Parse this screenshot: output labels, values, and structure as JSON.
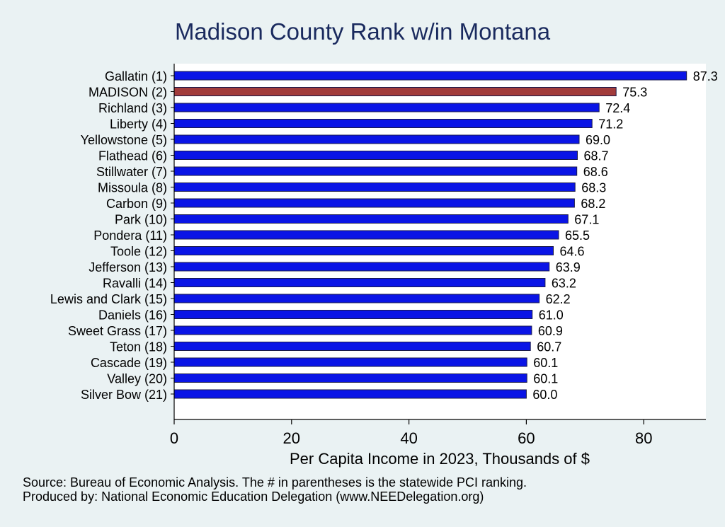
{
  "chart_data": {
    "type": "bar",
    "orientation": "horizontal",
    "title": "Madison County Rank w/in Montana",
    "xlabel": "Per Capita Income in 2023, Thousands of $",
    "ylabel": "",
    "xlim": [
      0,
      90
    ],
    "xticks": [
      0,
      20,
      40,
      60,
      80
    ],
    "grid": false,
    "categories": [
      "Gallatin  (1)",
      "MADISON  (2)",
      "Richland  (3)",
      "Liberty  (4)",
      "Yellowstone  (5)",
      "Flathead  (6)",
      "Stillwater  (7)",
      "Missoula  (8)",
      "Carbon  (9)",
      "Park (10)",
      "Pondera (11)",
      "Toole (12)",
      "Jefferson (13)",
      "Ravalli (14)",
      "Lewis and Clark (15)",
      "Daniels (16)",
      "Sweet Grass (17)",
      "Teton (18)",
      "Cascade (19)",
      "Valley (20)",
      "Silver Bow (21)"
    ],
    "values": [
      87.3,
      75.3,
      72.4,
      71.2,
      69.0,
      68.7,
      68.6,
      68.3,
      68.2,
      67.1,
      65.5,
      64.6,
      63.9,
      63.2,
      62.2,
      61.0,
      60.9,
      60.7,
      60.1,
      60.1,
      60.0
    ],
    "value_labels": [
      "87.3",
      "75.3",
      "72.4",
      "71.2",
      "69.0",
      "68.7",
      "68.6",
      "68.3",
      "68.2",
      "67.1",
      "65.5",
      "64.6",
      "63.9",
      "63.2",
      "62.2",
      "61.0",
      "60.9",
      "60.7",
      "60.1",
      "60.1",
      "60.0"
    ],
    "highlight_index": 1,
    "colors": {
      "bar": "#0a14e6",
      "highlight": "#a23b3b",
      "bar_edge": "#1a1a4a",
      "plot_bg": "#ffffff",
      "page_bg": "#eaf2f3",
      "title": "#1a2a5e"
    }
  },
  "notes": {
    "source": "Source: Bureau of Economic Analysis. The # in parentheses is the statewide PCI ranking.",
    "produced_by": "Produced by: National Economic Education Delegation (www.NEEDelegation.org)"
  }
}
